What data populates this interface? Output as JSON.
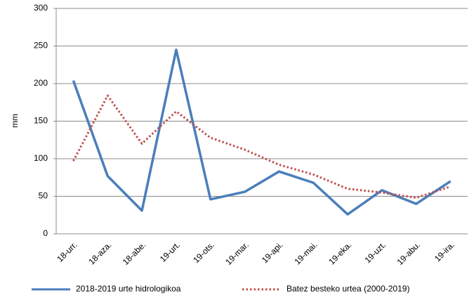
{
  "chart_data": {
    "type": "line",
    "y_label": "mm",
    "categories": [
      "18-urr.",
      "18-aza.",
      "18-abe.",
      "19-urt.",
      "19-ots.",
      "19-mar.",
      "19-api.",
      "19-mai.",
      "19-eka.",
      "19-uzt.",
      "19-abu.",
      "19-ira."
    ],
    "series": [
      {
        "name": "2018-2019 urte hidrologikoa",
        "color": "#4a7ebb",
        "line_style": "solid",
        "values": [
          204,
          77,
          31,
          245,
          46,
          56,
          83,
          68,
          26,
          58,
          40,
          70
        ]
      },
      {
        "name": "Batez besteko urtea (2000-2019)",
        "color": "#c0504d",
        "line_style": "dotted",
        "values": [
          97,
          184,
          120,
          163,
          128,
          112,
          92,
          79,
          60,
          55,
          48,
          63
        ]
      }
    ],
    "ylim": [
      0,
      300
    ],
    "yticks": [
      0,
      50,
      100,
      150,
      200,
      250,
      300
    ],
    "grid": true,
    "legend": "bottom"
  }
}
